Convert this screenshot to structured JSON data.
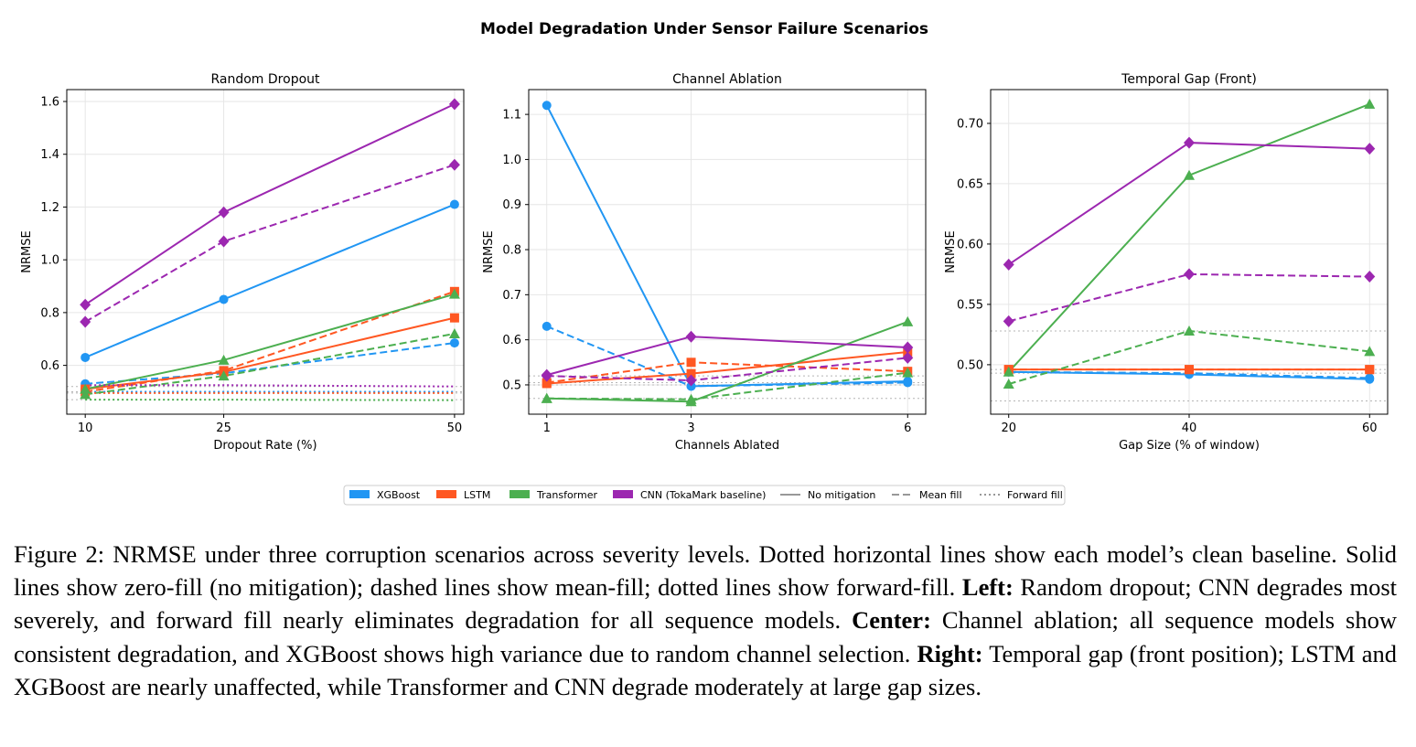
{
  "figure": {
    "title": "Model Degradation Under Sensor Failure Scenarios"
  },
  "legend": {
    "models": [
      {
        "key": "xgb",
        "label": "XGBoost",
        "color": "#2196F3",
        "marker": "circle"
      },
      {
        "key": "lstm",
        "label": "LSTM",
        "color": "#FF5722",
        "marker": "square"
      },
      {
        "key": "trf",
        "label": "Transformer",
        "color": "#4CAF50",
        "marker": "triangle"
      },
      {
        "key": "cnn",
        "label": "CNN (TokaMark baseline)",
        "color": "#9C27B0",
        "marker": "diamond"
      }
    ],
    "styles": [
      {
        "key": "none",
        "label": "No mitigation",
        "dash": ""
      },
      {
        "key": "mean",
        "label": "Mean fill",
        "dash": "8,4"
      },
      {
        "key": "ffill",
        "label": "Forward fill",
        "dash": "2,3"
      }
    ]
  },
  "chart_data": [
    {
      "type": "line",
      "title": "Random Dropout",
      "xlabel": "Dropout Rate (%)",
      "ylabel": "NRMSE",
      "x": [
        10,
        25,
        50
      ],
      "xticks": [
        10,
        25,
        50
      ],
      "xlim": [
        8,
        51
      ],
      "ylim": [
        0.415,
        1.645
      ],
      "yticks": [
        0.6,
        0.8,
        1.0,
        1.2,
        1.4,
        1.6
      ],
      "ytick_labels": [
        "0.6",
        "0.8",
        "1.0",
        "1.2",
        "1.4",
        "1.6"
      ],
      "grid": true,
      "baselines": {
        "xgb": 0.5,
        "lstm": 0.495,
        "trf": 0.47,
        "cnn": 0.52
      },
      "series": [
        {
          "model": "xgb",
          "style": "none",
          "values": [
            0.63,
            0.85,
            1.21
          ]
        },
        {
          "model": "xgb",
          "style": "mean",
          "values": [
            0.53,
            0.57,
            0.685
          ]
        },
        {
          "model": "xgb",
          "style": "ffill",
          "values": [
            0.5,
            0.5,
            0.5
          ]
        },
        {
          "model": "lstm",
          "style": "none",
          "values": [
            0.51,
            0.575,
            0.78
          ]
        },
        {
          "model": "lstm",
          "style": "mean",
          "values": [
            0.5,
            0.58,
            0.88
          ]
        },
        {
          "model": "lstm",
          "style": "ffill",
          "values": [
            0.495,
            0.495,
            0.495
          ]
        },
        {
          "model": "trf",
          "style": "none",
          "values": [
            0.51,
            0.62,
            0.87
          ]
        },
        {
          "model": "trf",
          "style": "mean",
          "values": [
            0.49,
            0.56,
            0.72
          ]
        },
        {
          "model": "trf",
          "style": "ffill",
          "values": [
            0.47,
            0.47,
            0.468
          ]
        },
        {
          "model": "cnn",
          "style": "none",
          "values": [
            0.83,
            1.18,
            1.59
          ]
        },
        {
          "model": "cnn",
          "style": "mean",
          "values": [
            0.765,
            1.07,
            1.36
          ]
        },
        {
          "model": "cnn",
          "style": "ffill",
          "values": [
            0.525,
            0.525,
            0.52
          ]
        }
      ]
    },
    {
      "type": "line",
      "title": "Channel Ablation",
      "xlabel": "Channels Ablated",
      "ylabel": "NRMSE",
      "x": [
        1,
        3,
        6
      ],
      "xticks": [
        1,
        3,
        6
      ],
      "xlim": [
        0.75,
        6.25
      ],
      "ylim": [
        0.435,
        1.155
      ],
      "yticks": [
        0.5,
        0.6,
        0.7,
        0.8,
        0.9,
        1.0,
        1.1
      ],
      "ytick_labels": [
        "0.5",
        "0.6",
        "0.7",
        "0.8",
        "0.9",
        "1.0",
        "1.1"
      ],
      "grid": true,
      "baselines": {
        "xgb": 0.5,
        "lstm": 0.505,
        "trf": 0.47,
        "cnn": 0.52
      },
      "series": [
        {
          "model": "xgb",
          "style": "none",
          "values": [
            1.12,
            0.497,
            0.508
          ]
        },
        {
          "model": "xgb",
          "style": "mean",
          "values": [
            0.63,
            0.497,
            0.505
          ]
        },
        {
          "model": "lstm",
          "style": "none",
          "values": [
            0.503,
            0.525,
            0.573
          ]
        },
        {
          "model": "lstm",
          "style": "mean",
          "values": [
            0.505,
            0.55,
            0.53
          ]
        },
        {
          "model": "trf",
          "style": "none",
          "values": [
            0.47,
            0.463,
            0.64
          ]
        },
        {
          "model": "trf",
          "style": "mean",
          "values": [
            0.47,
            0.468,
            0.527
          ]
        },
        {
          "model": "cnn",
          "style": "none",
          "values": [
            0.522,
            0.607,
            0.583
          ]
        },
        {
          "model": "cnn",
          "style": "mean",
          "values": [
            0.52,
            0.51,
            0.56
          ]
        }
      ]
    },
    {
      "type": "line",
      "title": "Temporal Gap (Front)",
      "xlabel": "Gap Size (% of window)",
      "ylabel": "NRMSE",
      "x": [
        20,
        40,
        60
      ],
      "xticks": [
        20,
        40,
        60
      ],
      "xlim": [
        18,
        62
      ],
      "ylim": [
        0.459,
        0.728
      ],
      "yticks": [
        0.5,
        0.55,
        0.6,
        0.65,
        0.7
      ],
      "ytick_labels": [
        "0.50",
        "0.55",
        "0.60",
        "0.65",
        "0.70"
      ],
      "grid": true,
      "baselines": {
        "xgb": 0.493,
        "lstm": 0.496,
        "trf": 0.47,
        "cnn": 0.528
      },
      "series": [
        {
          "model": "xgb",
          "style": "none",
          "values": [
            0.494,
            0.492,
            0.488
          ]
        },
        {
          "model": "xgb",
          "style": "mean",
          "values": [
            0.494,
            0.493,
            0.489
          ]
        },
        {
          "model": "lstm",
          "style": "none",
          "values": [
            0.496,
            0.496,
            0.496
          ]
        },
        {
          "model": "lstm",
          "style": "mean",
          "values": [
            0.496,
            0.496,
            0.496
          ]
        },
        {
          "model": "trf",
          "style": "none",
          "values": [
            0.494,
            0.657,
            0.716
          ]
        },
        {
          "model": "trf",
          "style": "mean",
          "values": [
            0.484,
            0.528,
            0.511
          ]
        },
        {
          "model": "cnn",
          "style": "none",
          "values": [
            0.583,
            0.684,
            0.679
          ]
        },
        {
          "model": "cnn",
          "style": "mean",
          "values": [
            0.536,
            0.575,
            0.573
          ]
        }
      ]
    }
  ],
  "caption": {
    "p1": "Figure 2: NRMSE under three corruption scenarios across severity levels. Dotted horizontal lines show each model’s clean baseline. Solid lines show zero-fill (no mitigation); dashed lines show mean-fill; dotted lines show forward-fill.",
    "left_label": "Left:",
    "left_text": "Random dropout; CNN degrades most severely, and forward fill nearly eliminates degradation for all sequence models.",
    "center_label": "Center:",
    "center_text": "Channel ablation; all sequence models show consistent degradation, and XGBoost shows high variance due to random channel selection.",
    "right_label": "Right:",
    "right_text": "Temporal gap (front position); LSTM and XGBoost are nearly unaffected, while Transformer and CNN degrade moderately at large gap sizes."
  }
}
